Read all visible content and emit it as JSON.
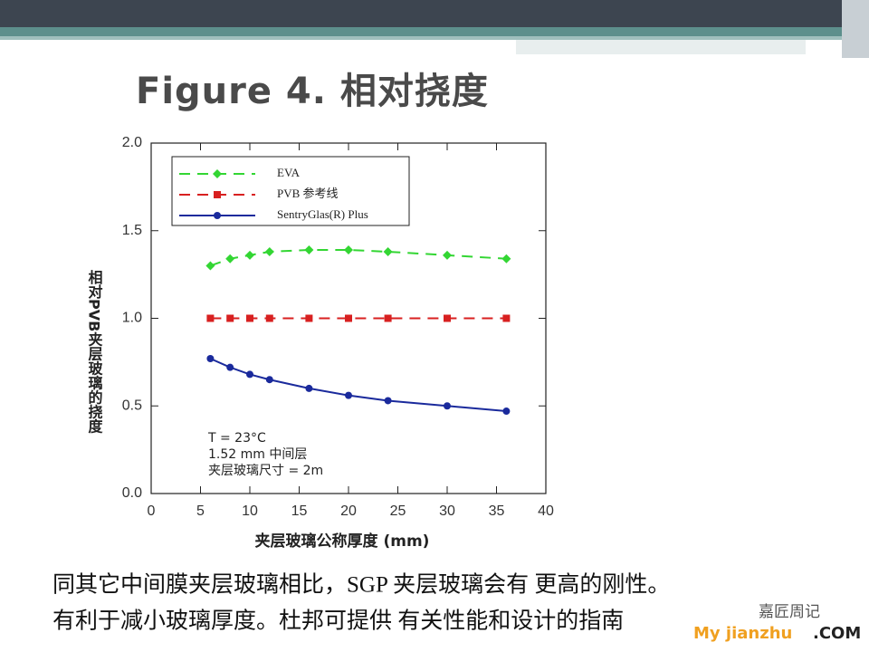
{
  "chart_data": {
    "type": "line",
    "title": "Figure 4. 相对挠度",
    "x": [
      6,
      8,
      10,
      12,
      16,
      20,
      24,
      30,
      36
    ],
    "series": [
      {
        "name": "EVA",
        "color": "#33d633",
        "marker": "diamond",
        "dash": true,
        "values": [
          1.3,
          1.34,
          1.36,
          1.38,
          1.39,
          1.39,
          1.38,
          1.36,
          1.34
        ]
      },
      {
        "name": "PVB 参考线",
        "color": "#d82020",
        "marker": "square",
        "dash": true,
        "values": [
          1.0,
          1.0,
          1.0,
          1.0,
          1.0,
          1.0,
          1.0,
          1.0,
          1.0
        ]
      },
      {
        "name": "SentryGlas(R) Plus",
        "color": "#1a2a9c",
        "marker": "circle",
        "dash": false,
        "values": [
          0.77,
          0.72,
          0.68,
          0.65,
          0.6,
          0.56,
          0.53,
          0.5,
          0.47
        ]
      }
    ],
    "xlim": [
      0,
      40
    ],
    "xticks": [
      0,
      5,
      10,
      15,
      20,
      25,
      30,
      35,
      40
    ],
    "ylim": [
      0,
      2
    ],
    "yticks": [
      {
        "value": 0,
        "label": "0.0"
      },
      {
        "value": 0.5,
        "label": "0.5"
      },
      {
        "value": 1,
        "label": "1.0"
      },
      {
        "value": 1.5,
        "label": "1.5"
      },
      {
        "value": 2,
        "label": "2.0"
      }
    ],
    "xlabel": "夹层玻璃公称厚度 (mm)",
    "ylabel": "相对PVB夹层玻璃的挠度",
    "annotations": [
      "T = 23°C",
      "1.52 mm 中间层",
      "夹层玻璃尺寸 = 2m"
    ],
    "grid": false,
    "legend": "upper left"
  },
  "caption": [
    "同其它中间膜夹层玻璃相比，SGP 夹层玻璃会有 更高的刚性。",
    "有利于减小玻璃厚度。杜邦可提供 有关性能和设计的指南"
  ],
  "watermark": {
    "name": "嘉匠周记",
    "site": "My jianzhu",
    "suffix": ".COM"
  }
}
